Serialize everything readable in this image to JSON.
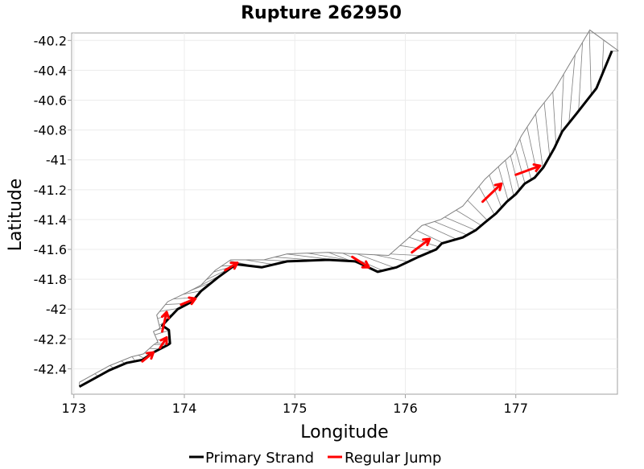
{
  "chart_data": {
    "type": "line",
    "title": "Rupture 262950",
    "xlabel": "Longitude",
    "ylabel": "Latitude",
    "xlim": [
      172.98,
      177.92
    ],
    "ylim": [
      -42.57,
      -40.15
    ],
    "xticks": [
      173,
      174,
      175,
      176,
      177
    ],
    "yticks": [
      -40.2,
      -40.4,
      -40.6,
      -40.8,
      -41,
      -41.2,
      -41.4,
      -41.6,
      -41.8,
      -42,
      -42.2,
      -42.4
    ],
    "grid": true,
    "legend_position": "bottom-center",
    "colors": {
      "primary": "#000000",
      "jump": "#ff0000",
      "patch_edge": "#808080"
    },
    "series": [
      {
        "name": "Primary Strand",
        "color": "#000000",
        "points": [
          [
            173.05,
            -42.52
          ],
          [
            173.32,
            -42.41
          ],
          [
            173.48,
            -42.36
          ],
          [
            173.62,
            -42.34
          ],
          [
            173.72,
            -42.29
          ],
          [
            173.85,
            -42.24
          ],
          [
            173.87,
            -42.23
          ],
          [
            173.86,
            -42.14
          ],
          [
            173.8,
            -42.11
          ],
          [
            173.85,
            -42.07
          ],
          [
            173.94,
            -42.0
          ],
          [
            174.07,
            -41.95
          ],
          [
            174.15,
            -41.88
          ],
          [
            174.3,
            -41.79
          ],
          [
            174.43,
            -41.72
          ],
          [
            174.48,
            -41.7
          ],
          [
            174.7,
            -41.72
          ],
          [
            174.93,
            -41.68
          ],
          [
            175.3,
            -41.67
          ],
          [
            175.55,
            -41.68
          ],
          [
            175.75,
            -41.75
          ],
          [
            175.92,
            -41.72
          ],
          [
            176.12,
            -41.65
          ],
          [
            176.28,
            -41.6
          ],
          [
            176.33,
            -41.56
          ],
          [
            176.52,
            -41.52
          ],
          [
            176.64,
            -41.47
          ],
          [
            176.72,
            -41.42
          ],
          [
            176.82,
            -41.36
          ],
          [
            176.92,
            -41.28
          ],
          [
            177.0,
            -41.23
          ],
          [
            177.08,
            -41.16
          ],
          [
            177.17,
            -41.12
          ],
          [
            177.25,
            -41.05
          ],
          [
            177.35,
            -40.92
          ],
          [
            177.42,
            -40.81
          ],
          [
            177.55,
            -40.69
          ],
          [
            177.73,
            -40.52
          ],
          [
            177.87,
            -40.27
          ]
        ]
      },
      {
        "name": "Regular Jump",
        "color": "#ff0000",
        "jumps": [
          [
            [
              173.62,
              -42.35
            ],
            [
              173.72,
              -42.29
            ]
          ],
          [
            [
              173.78,
              -42.26
            ],
            [
              173.84,
              -42.19
            ]
          ],
          [
            [
              173.8,
              -42.15
            ],
            [
              173.84,
              -42.02
            ]
          ],
          [
            [
              173.97,
              -41.97
            ],
            [
              174.1,
              -41.93
            ]
          ],
          [
            [
              174.37,
              -41.74
            ],
            [
              174.48,
              -41.69
            ]
          ],
          [
            [
              175.52,
              -41.65
            ],
            [
              175.67,
              -41.72
            ]
          ],
          [
            [
              176.06,
              -41.62
            ],
            [
              176.22,
              -41.53
            ]
          ],
          [
            [
              176.7,
              -41.28
            ],
            [
              176.87,
              -41.16
            ]
          ],
          [
            [
              177.0,
              -41.1
            ],
            [
              177.22,
              -41.04
            ]
          ]
        ]
      }
    ],
    "patch_outline": [
      [
        173.05,
        -42.49
      ],
      [
        173.32,
        -42.38
      ],
      [
        173.52,
        -42.32
      ],
      [
        173.63,
        -42.3
      ],
      [
        173.72,
        -42.24
      ],
      [
        173.76,
        -42.22
      ],
      [
        173.72,
        -42.15
      ],
      [
        173.78,
        -42.13
      ],
      [
        173.75,
        -42.04
      ],
      [
        173.85,
        -41.95
      ],
      [
        174.02,
        -41.89
      ],
      [
        174.15,
        -41.84
      ],
      [
        174.28,
        -41.74
      ],
      [
        174.42,
        -41.67
      ],
      [
        174.72,
        -41.67
      ],
      [
        174.93,
        -41.63
      ],
      [
        175.3,
        -41.62
      ],
      [
        175.55,
        -41.63
      ],
      [
        175.85,
        -41.64
      ],
      [
        176.02,
        -41.53
      ],
      [
        176.15,
        -41.44
      ],
      [
        176.32,
        -41.4
      ],
      [
        176.52,
        -41.31
      ],
      [
        176.72,
        -41.13
      ],
      [
        176.88,
        -41.02
      ],
      [
        176.97,
        -40.96
      ],
      [
        177.05,
        -40.84
      ],
      [
        177.2,
        -40.67
      ],
      [
        177.35,
        -40.53
      ],
      [
        177.55,
        -40.28
      ],
      [
        177.67,
        -40.13
      ],
      [
        177.93,
        -40.27
      ]
    ]
  },
  "legend": {
    "items": [
      {
        "label": "Primary Strand",
        "color": "#000000"
      },
      {
        "label": "Regular Jump",
        "color": "#ff0000"
      }
    ]
  }
}
